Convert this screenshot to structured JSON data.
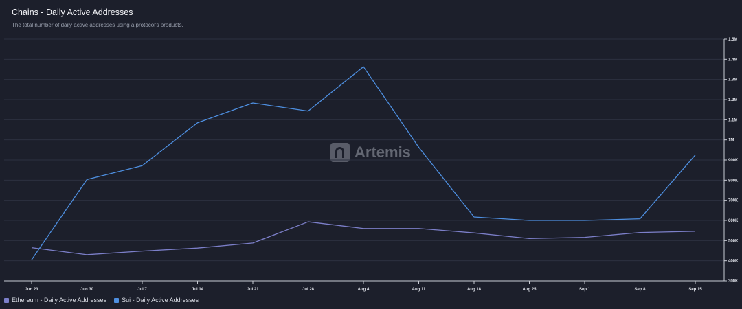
{
  "header": {
    "title": "Chains - Daily Active Addresses",
    "subtitle": "The total number of daily active addresses using a protocol's products."
  },
  "watermark": {
    "text": "Artemis",
    "icon": "artemis-logo-icon"
  },
  "chart_data": {
    "type": "line",
    "categories": [
      "Jun 23",
      "Jun 30",
      "Jul 7",
      "Jul 14",
      "Jul 21",
      "Jul 28",
      "Aug 4",
      "Aug 11",
      "Aug 18",
      "Aug 25",
      "Sep 1",
      "Sep 8",
      "Sep 15"
    ],
    "series": [
      {
        "name": "Ethereum - Daily Active Addresses",
        "color": "#7c7fc9",
        "values": [
          465000,
          430000,
          448000,
          463000,
          488000,
          593000,
          560000,
          560000,
          538000,
          510000,
          516000,
          540000,
          546000
        ]
      },
      {
        "name": "Sui - Daily Active Addresses",
        "color": "#4e8fe0",
        "values": [
          405000,
          803000,
          872000,
          1085000,
          1183000,
          1143000,
          1363000,
          963000,
          617000,
          600000,
          600000,
          608000,
          925000
        ]
      }
    ],
    "yticks": [
      "300K",
      "400K",
      "500K",
      "600K",
      "700K",
      "800K",
      "900K",
      "1M",
      "1.1M",
      "1.2M",
      "1.3M",
      "1.4M",
      "1.5M"
    ],
    "ylim": [
      300000,
      1500000
    ],
    "grid": true,
    "yaxis_position": "right",
    "legend_position": "bottom-left"
  }
}
